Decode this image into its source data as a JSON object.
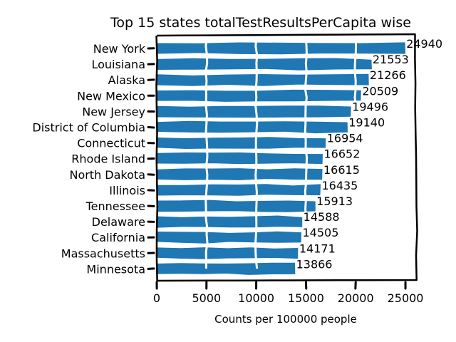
{
  "chart_data": {
    "type": "bar",
    "orientation": "horizontal",
    "title": "Top 15 states totalTestResultsPerCapita wise",
    "xlabel": "Counts per 100000 people",
    "ylabel": "",
    "xlim": [
      0,
      26000
    ],
    "xticks": [
      0,
      5000,
      10000,
      15000,
      20000,
      25000
    ],
    "xtick_labels": [
      "0",
      "5000",
      "10000",
      "15000",
      "20000",
      "25000"
    ],
    "categories": [
      "New York",
      "Louisiana",
      "Alaska",
      "New Mexico",
      "New Jersey",
      "District of Columbia",
      "Connecticut",
      "Rhode Island",
      "North Dakota",
      "Illinois",
      "Tennessee",
      "Delaware",
      "California",
      "Massachusetts",
      "Minnesota"
    ],
    "values": [
      24940,
      21553,
      21266,
      20509,
      19496,
      19140,
      16954,
      16652,
      16615,
      16435,
      15913,
      14588,
      14505,
      14171,
      13866
    ],
    "data_labels": [
      "24940",
      "21553",
      "21266",
      "20509",
      "19496",
      "19140",
      "16954",
      "16652",
      "16615",
      "16435",
      "15913",
      "14588",
      "14505",
      "14171",
      "13866"
    ],
    "bar_color": "#1f77b4",
    "grid": false,
    "style": "xkcd"
  }
}
